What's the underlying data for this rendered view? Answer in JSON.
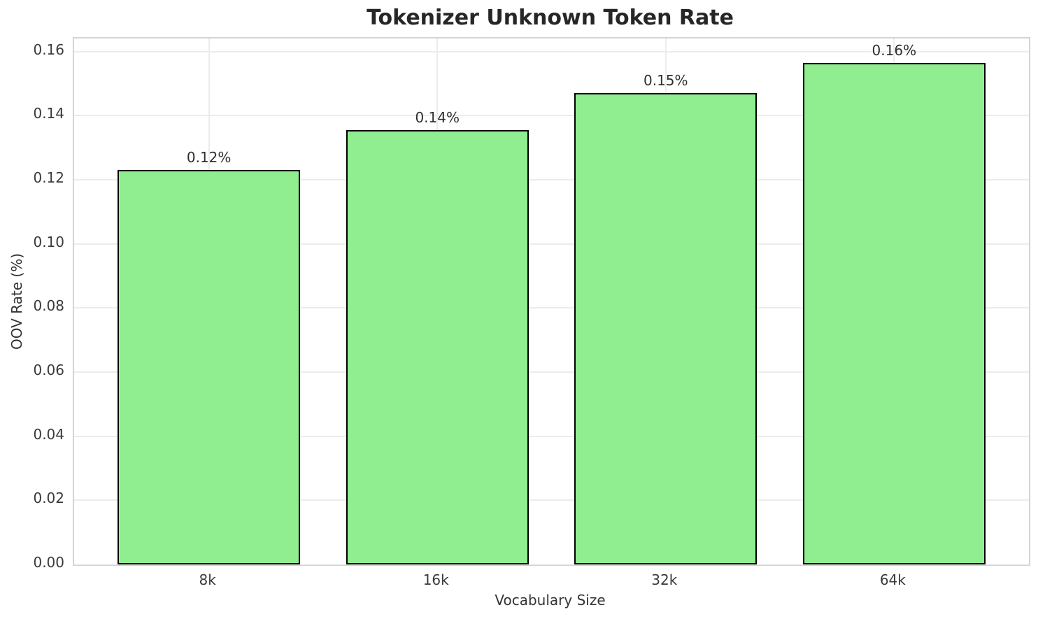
{
  "chart_data": {
    "type": "bar",
    "title": "Tokenizer Unknown Token Rate",
    "xlabel": "Vocabulary Size",
    "ylabel": "OOV Rate (%)",
    "categories": [
      "8k",
      "16k",
      "32k",
      "64k"
    ],
    "values": [
      0.123,
      0.1355,
      0.147,
      0.1565
    ],
    "bar_labels": [
      "0.12%",
      "0.14%",
      "0.15%",
      "0.16%"
    ],
    "ytick_values": [
      0.0,
      0.02,
      0.04,
      0.06,
      0.08,
      0.1,
      0.12,
      0.14,
      0.16
    ],
    "ytick_labels": [
      "0.00",
      "0.02",
      "0.04",
      "0.06",
      "0.08",
      "0.10",
      "0.12",
      "0.14",
      "0.16"
    ],
    "ylim": [
      0,
      0.1641
    ],
    "grid": true,
    "legend_position": "none",
    "colors": {
      "bar_fill": "#90EE90",
      "bar_edge": "#000000",
      "grid": "#ececec",
      "spine": "#d4d4d4",
      "title_text": "#262626",
      "tick_text": "#3a3a3a"
    }
  }
}
